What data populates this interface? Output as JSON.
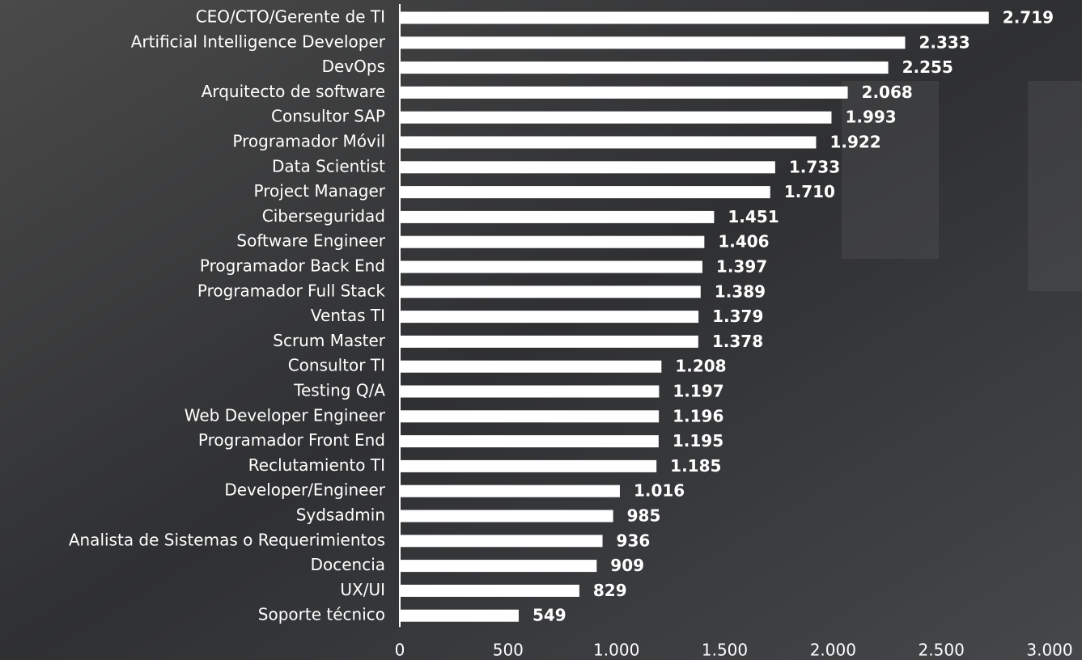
{
  "chart_data": {
    "type": "bar",
    "orientation": "horizontal",
    "categories": [
      "CEO/CTO/Gerente de TI",
      "Artificial Intelligence Developer",
      "DevOps",
      "Arquitecto de software",
      "Consultor SAP",
      "Programador Móvil",
      "Data Scientist",
      "Project Manager",
      "Ciberseguridad",
      "Software Engineer",
      "Programador Back End",
      "Programador Full Stack",
      "Ventas TI",
      "Scrum Master",
      "Consultor TI",
      "Testing Q/A",
      "Web Developer Engineer",
      "Programador Front End",
      "Reclutamiento TI",
      "Developer/Engineer",
      "Sydsadmin",
      "Analista de Sistemas o Requerimientos",
      "Docencia",
      "UX/UI",
      "Soporte técnico"
    ],
    "values": [
      2719,
      2333,
      2255,
      2068,
      1993,
      1922,
      1733,
      1710,
      1451,
      1406,
      1397,
      1389,
      1379,
      1378,
      1208,
      1197,
      1196,
      1195,
      1185,
      1016,
      985,
      936,
      909,
      829,
      549
    ],
    "value_labels": [
      "2.719",
      "2.333",
      "2.255",
      "2.068",
      "1.993",
      "1.922",
      "1.733",
      "1.710",
      "1.451",
      "1.406",
      "1.397",
      "1.389",
      "1.379",
      "1.378",
      "1.208",
      "1.197",
      "1.196",
      "1.195",
      "1.185",
      "1.016",
      "985",
      "936",
      "909",
      "829",
      "549"
    ],
    "color": "#ffffff",
    "xlim": [
      0,
      3000
    ],
    "xticks": [
      0,
      500,
      {
        "value": 1000,
        "label": "1.000"
      },
      {
        "value": 1500,
        "label": "1.500"
      },
      {
        "value": 2000,
        "label": "2.000"
      },
      {
        "value": 2500,
        "label": "2.500"
      },
      {
        "value": 3000,
        "label": "3.000"
      }
    ]
  }
}
